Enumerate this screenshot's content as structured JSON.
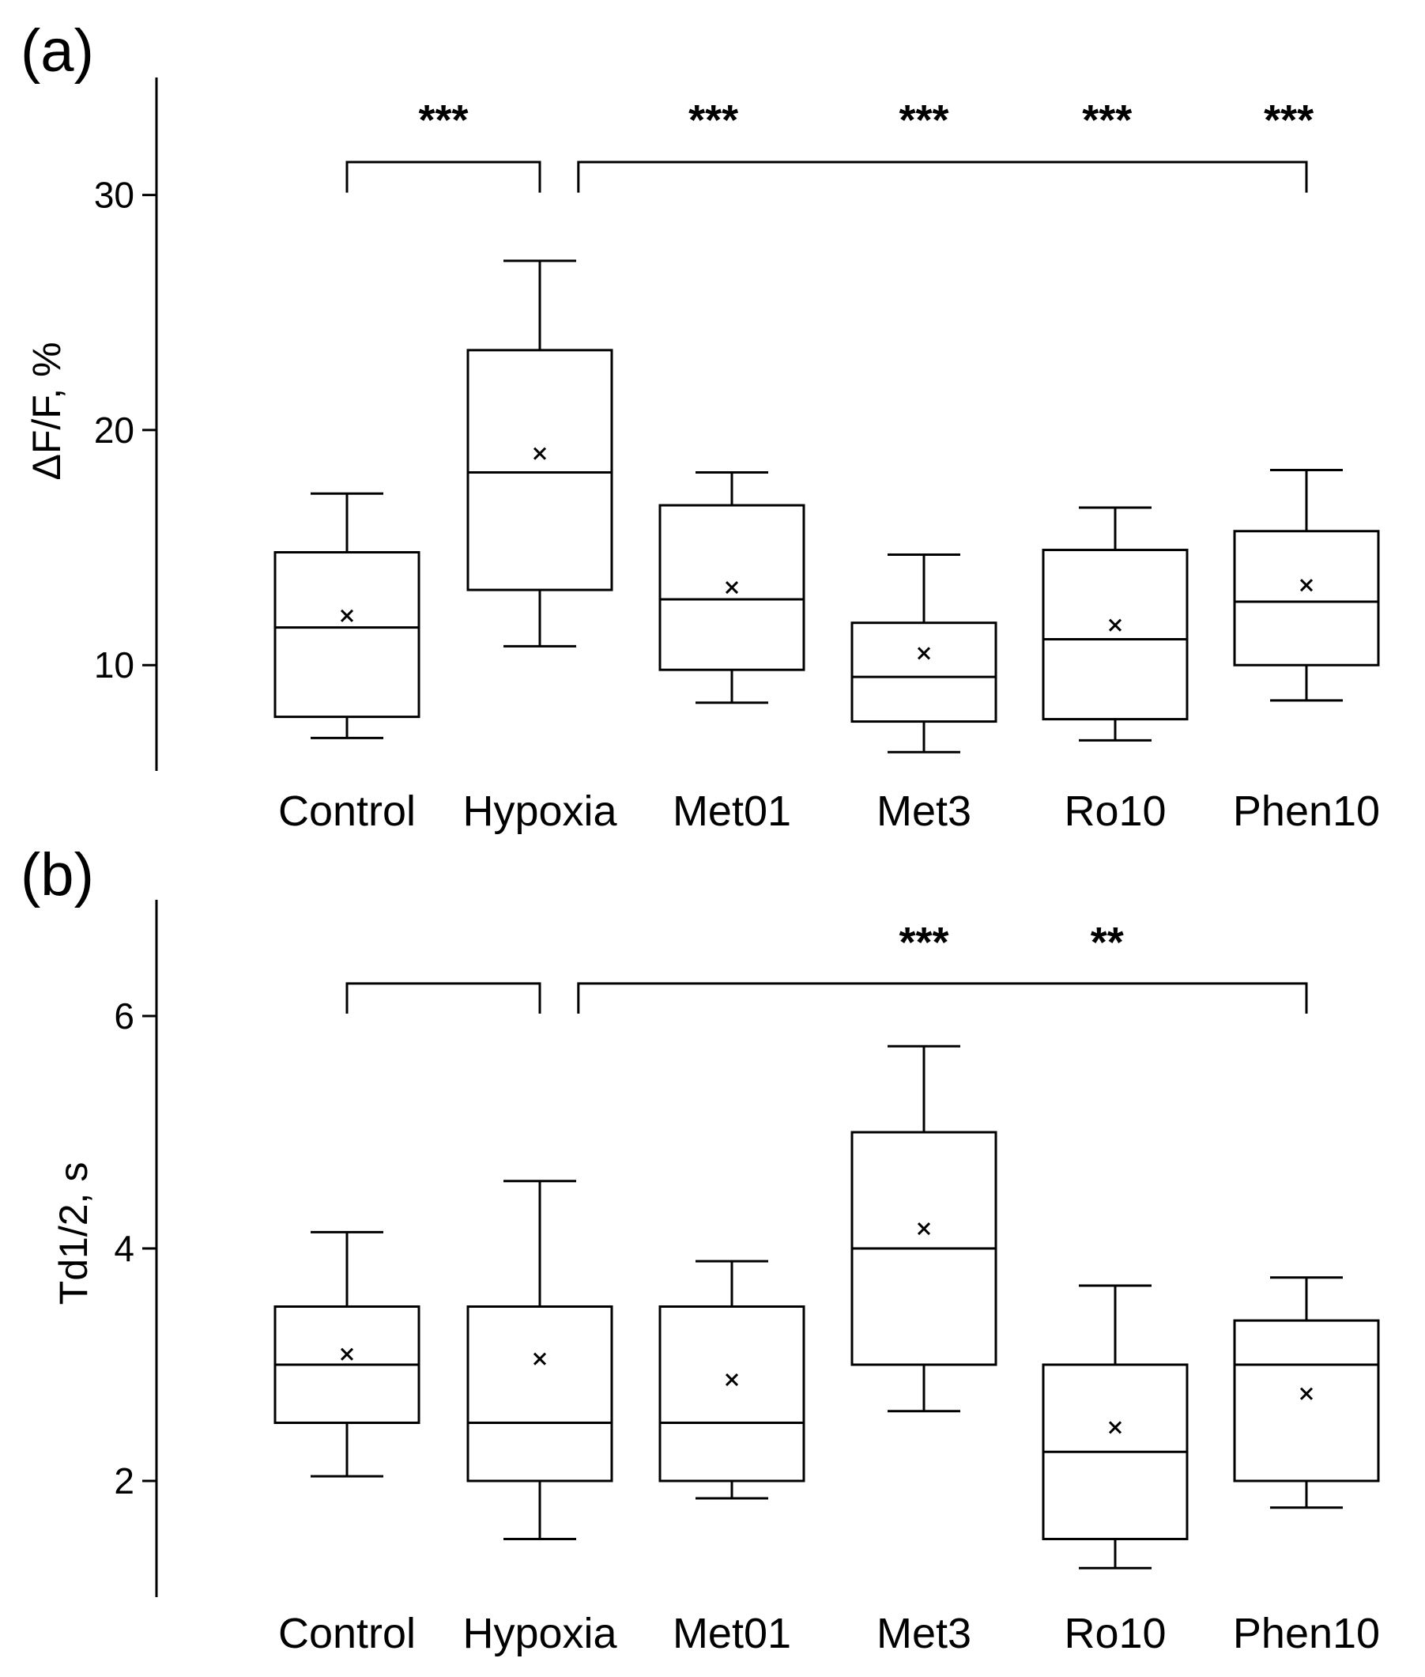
{
  "chart_data": [
    {
      "panel": "(a)",
      "type": "boxplot",
      "ylabel": "ΔF/F, %",
      "ylim": [
        5.5,
        35
      ],
      "yticks": [
        10,
        20,
        30
      ],
      "categories": [
        "Control",
        "Hypoxia",
        "Met01",
        "Met3",
        "Ro10",
        "Phen10"
      ],
      "boxes": [
        {
          "name": "Control",
          "whisker_low": 6.9,
          "q1": 7.8,
          "median": 11.6,
          "q3": 14.8,
          "whisker_high": 17.3,
          "mean": 12.1
        },
        {
          "name": "Hypoxia",
          "whisker_low": 10.8,
          "q1": 13.2,
          "median": 18.2,
          "q3": 23.4,
          "whisker_high": 27.2,
          "mean": 19.0
        },
        {
          "name": "Met01",
          "whisker_low": 8.4,
          "q1": 9.8,
          "median": 12.8,
          "q3": 16.8,
          "whisker_high": 18.2,
          "mean": 13.3
        },
        {
          "name": "Met3",
          "whisker_low": 6.3,
          "q1": 7.6,
          "median": 9.5,
          "q3": 11.8,
          "whisker_high": 14.7,
          "mean": 10.5
        },
        {
          "name": "Ro10",
          "whisker_low": 6.8,
          "q1": 7.7,
          "median": 11.1,
          "q3": 14.9,
          "whisker_high": 16.7,
          "mean": 11.7
        },
        {
          "name": "Phen10",
          "whisker_low": 8.5,
          "q1": 10.0,
          "median": 12.7,
          "q3": 15.7,
          "whisker_high": 18.3,
          "mean": 13.4
        }
      ],
      "annotations": {
        "stars": [
          {
            "label": "***",
            "category": "Hypoxia",
            "offset": -0.5
          },
          {
            "label": "***",
            "category": "Met01",
            "offset": -0.1
          },
          {
            "label": "***",
            "category": "Met3",
            "offset": 0
          },
          {
            "label": "***",
            "category": "Ro10",
            "offset": -0.05
          },
          {
            "label": "***",
            "category": "Phen10",
            "offset": -0.1
          }
        ],
        "brackets": [
          {
            "from": 0,
            "to": 1,
            "y": 31.4,
            "drop": 1.3
          },
          {
            "from": 1.2,
            "to": 5,
            "y": 31.4,
            "drop": 1.3
          }
        ]
      }
    },
    {
      "panel": "(b)",
      "type": "boxplot",
      "ylabel": "Td1/2, s",
      "ylim": [
        1.0,
        7.0
      ],
      "yticks": [
        2,
        4,
        6
      ],
      "categories": [
        "Control",
        "Hypoxia",
        "Met01",
        "Met3",
        "Ro10",
        "Phen10"
      ],
      "boxes": [
        {
          "name": "Control",
          "whisker_low": 2.04,
          "q1": 2.5,
          "median": 3.0,
          "q3": 3.5,
          "whisker_high": 4.14,
          "mean": 3.09
        },
        {
          "name": "Hypoxia",
          "whisker_low": 1.5,
          "q1": 2.0,
          "median": 2.5,
          "q3": 3.5,
          "whisker_high": 4.58,
          "mean": 3.05
        },
        {
          "name": "Met01",
          "whisker_low": 1.85,
          "q1": 2.0,
          "median": 2.5,
          "q3": 3.5,
          "whisker_high": 3.89,
          "mean": 2.87
        },
        {
          "name": "Met3",
          "whisker_low": 2.6,
          "q1": 3.0,
          "median": 4.0,
          "q3": 5.0,
          "whisker_high": 5.74,
          "mean": 4.17
        },
        {
          "name": "Ro10",
          "whisker_low": 1.25,
          "q1": 1.5,
          "median": 2.25,
          "q3": 3.0,
          "whisker_high": 3.68,
          "mean": 2.46
        },
        {
          "name": "Phen10",
          "whisker_low": 1.77,
          "q1": 2.0,
          "median": 3.0,
          "q3": 3.38,
          "whisker_high": 3.75,
          "mean": 2.75
        }
      ],
      "annotations": {
        "stars": [
          {
            "label": "***",
            "category": "Met3",
            "offset": 0
          },
          {
            "label": "**",
            "category": "Ro10",
            "offset": -0.05
          }
        ],
        "brackets": [
          {
            "from": 0,
            "to": 1,
            "y": 6.28,
            "drop": 0.26
          },
          {
            "from": 1.2,
            "to": 5,
            "y": 6.28,
            "drop": 0.26
          }
        ]
      }
    }
  ]
}
